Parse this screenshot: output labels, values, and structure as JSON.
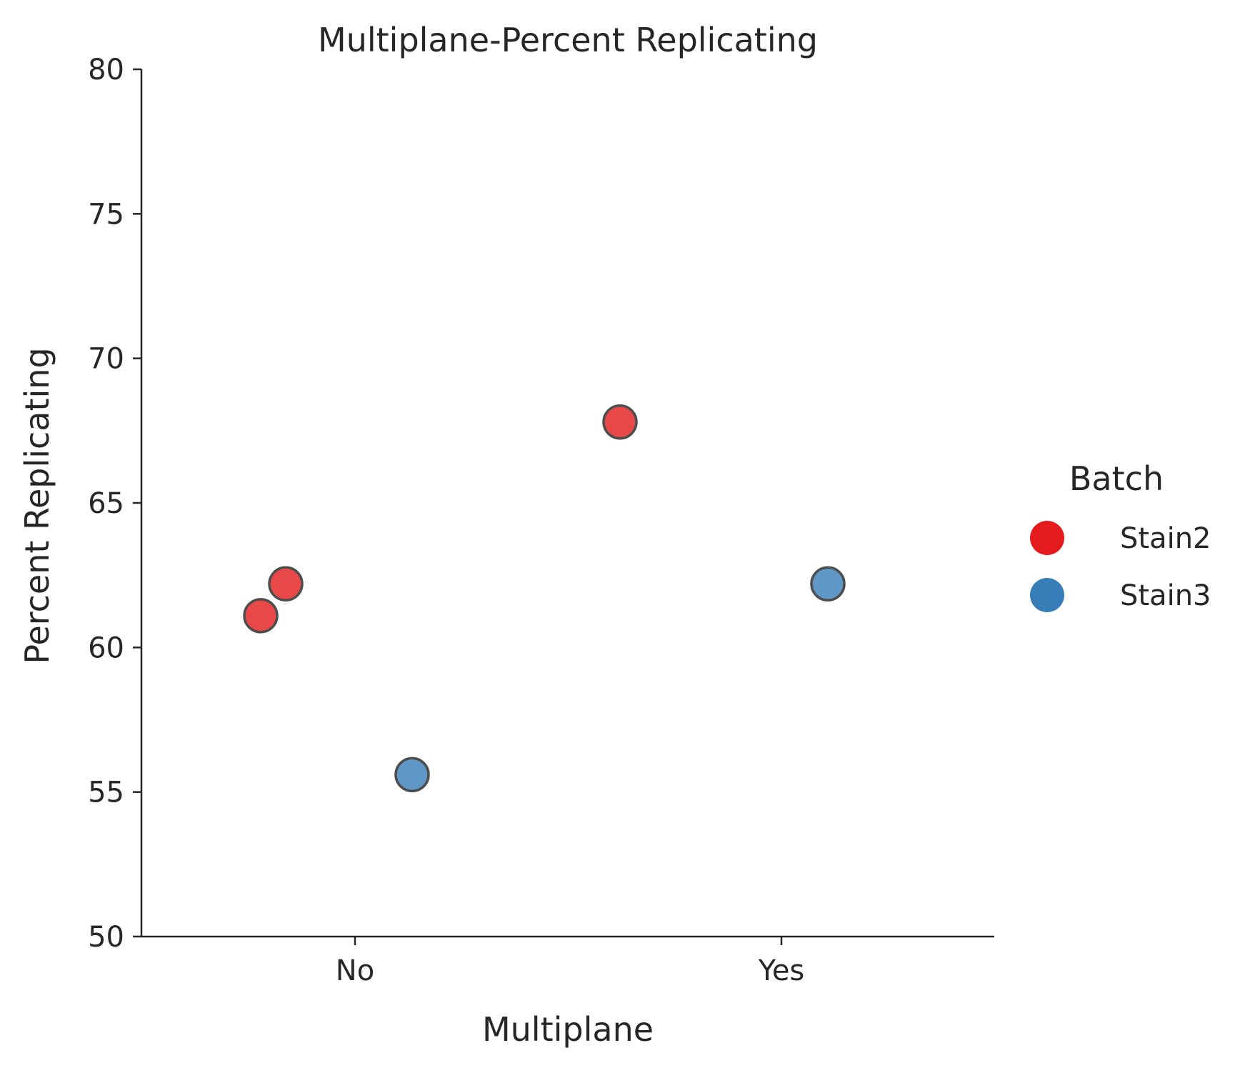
{
  "chart_data": {
    "type": "scatter",
    "title": "Multiplane-Percent Replicating",
    "xlabel": "Multiplane",
    "ylabel": "Percent Replicating",
    "categories": [
      "No",
      "Yes"
    ],
    "ylim": [
      50,
      80
    ],
    "yticks": [
      "50",
      "55",
      "60",
      "65",
      "70",
      "75",
      "80"
    ],
    "grid": false,
    "legend": {
      "title": "Batch",
      "placement": "right"
    },
    "series": [
      {
        "name": "Stain2",
        "color": "#e41a1c",
        "points": [
          {
            "x": "No",
            "y": 61.1
          },
          {
            "x": "No",
            "y": 62.2
          },
          {
            "x": "Yes",
            "y": 67.8
          }
        ]
      },
      {
        "name": "Stain3",
        "color": "#377eb8",
        "points": [
          {
            "x": "No",
            "y": 55.6
          },
          {
            "x": "Yes",
            "y": 62.2
          }
        ]
      }
    ]
  }
}
